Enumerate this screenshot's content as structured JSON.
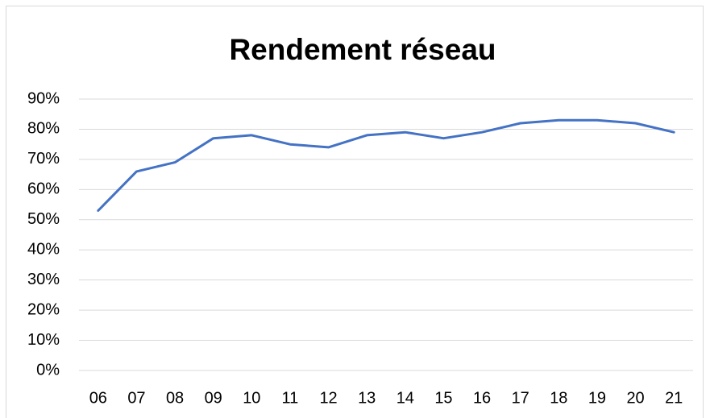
{
  "chart_data": {
    "type": "line",
    "title": "Rendement réseau",
    "categories": [
      "06",
      "07",
      "08",
      "09",
      "10",
      "11",
      "12",
      "13",
      "14",
      "15",
      "16",
      "17",
      "18",
      "19",
      "20",
      "21"
    ],
    "values": [
      53,
      66,
      69,
      77,
      78,
      75,
      74,
      78,
      79,
      77,
      79,
      82,
      83,
      83,
      82,
      79
    ],
    "color": "#4472c4",
    "ylim": [
      0,
      90
    ],
    "yticks": [
      {
        "value": 0,
        "label": "0%"
      },
      {
        "value": 10,
        "label": "10%"
      },
      {
        "value": 20,
        "label": "20%"
      },
      {
        "value": 30,
        "label": "30%"
      },
      {
        "value": 40,
        "label": "40%"
      },
      {
        "value": 50,
        "label": "50%"
      },
      {
        "value": 60,
        "label": "60%"
      },
      {
        "value": 70,
        "label": "70%"
      },
      {
        "value": 80,
        "label": "80%"
      },
      {
        "value": 90,
        "label": "90%"
      }
    ],
    "grid": true
  }
}
